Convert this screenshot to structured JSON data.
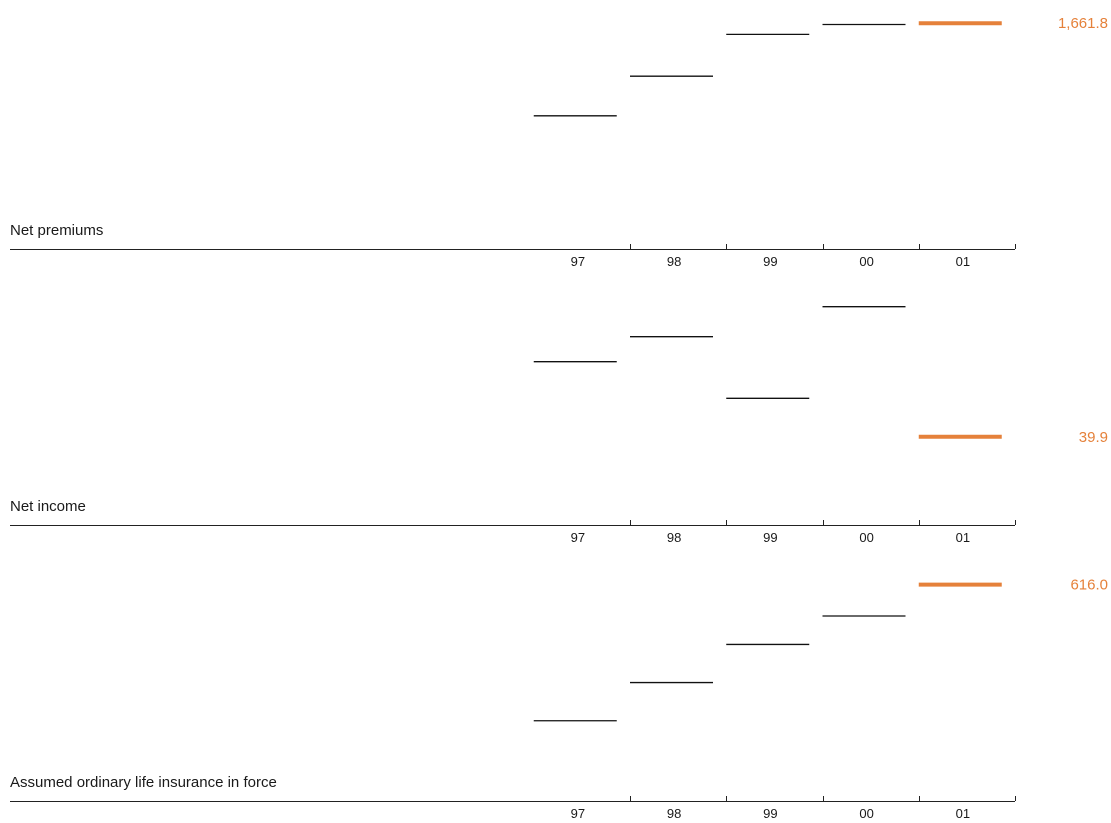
{
  "colors": {
    "highlight": "#e5813a",
    "mark": "#111111",
    "axis": "#222222"
  },
  "chart_data": [
    {
      "type": "line",
      "style": "horizontal-step-markers",
      "title": "Net premiums",
      "categories": [
        "97",
        "98",
        "99",
        "00",
        "01"
      ],
      "values": [
        820,
        1180,
        1560,
        1650,
        1661.8
      ],
      "ylim": [
        0,
        1700
      ],
      "highlight_index": 4,
      "highlight_label": "1,661.8",
      "grid": false,
      "legend": "none"
    },
    {
      "type": "line",
      "style": "horizontal-step-markers",
      "title": "Net income",
      "categories": [
        "97",
        "98",
        "99",
        "00",
        "01"
      ],
      "values": [
        130,
        160,
        86,
        196,
        39.9
      ],
      "ylim": [
        0,
        210
      ],
      "highlight_index": 4,
      "highlight_label": "39.9",
      "grid": false,
      "legend": "none"
    },
    {
      "type": "line",
      "style": "horizontal-step-markers",
      "title": "Assumed ordinary life insurance in force",
      "categories": [
        "97",
        "98",
        "99",
        "00",
        "01"
      ],
      "values": [
        138,
        272,
        406,
        506,
        616.0
      ],
      "ylim": [
        0,
        650
      ],
      "highlight_index": 4,
      "highlight_label": "616.0",
      "grid": false,
      "legend": "none"
    }
  ]
}
